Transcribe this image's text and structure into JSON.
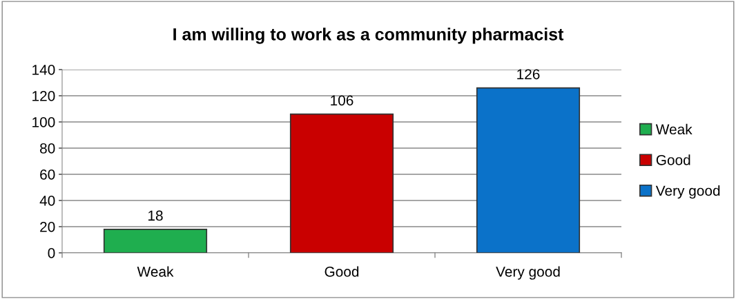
{
  "chart_data": {
    "type": "bar",
    "title": "I am willing to work as a community pharmacist",
    "categories": [
      "Weak",
      "Good",
      "Very good"
    ],
    "series": [
      {
        "name": "Weak",
        "color": "#1fae4f",
        "values": [
          18,
          null,
          null
        ]
      },
      {
        "name": "Good",
        "color": "#c90000",
        "values": [
          null,
          106,
          null
        ]
      },
      {
        "name": "Very good",
        "color": "#0b72c9",
        "values": [
          null,
          null,
          126
        ]
      }
    ],
    "ylim": [
      0,
      140
    ],
    "yticks": [
      0,
      20,
      40,
      60,
      80,
      100,
      120,
      140
    ],
    "grid": "y",
    "legend": "right",
    "data_labels": true
  }
}
